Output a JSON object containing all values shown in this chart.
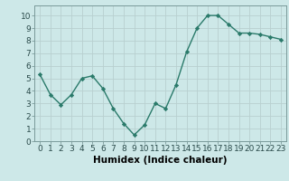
{
  "x": [
    0,
    1,
    2,
    3,
    4,
    5,
    6,
    7,
    8,
    9,
    10,
    11,
    12,
    13,
    14,
    15,
    16,
    17,
    18,
    19,
    20,
    21,
    22,
    23
  ],
  "y": [
    5.3,
    3.7,
    2.9,
    3.7,
    5.0,
    5.2,
    4.2,
    2.6,
    1.4,
    0.5,
    1.3,
    3.0,
    2.6,
    4.5,
    7.1,
    9.0,
    10.0,
    10.0,
    9.3,
    8.6,
    8.6,
    8.5,
    8.3,
    8.1
  ],
  "xlim": [
    -0.5,
    23.5
  ],
  "ylim": [
    0,
    10.8
  ],
  "xlabel": "Humidex (Indice chaleur)",
  "xticks": [
    0,
    1,
    2,
    3,
    4,
    5,
    6,
    7,
    8,
    9,
    10,
    11,
    12,
    13,
    14,
    15,
    16,
    17,
    18,
    19,
    20,
    21,
    22,
    23
  ],
  "yticks": [
    0,
    1,
    2,
    3,
    4,
    5,
    6,
    7,
    8,
    9,
    10
  ],
  "line_color": "#2a7a6a",
  "marker": "D",
  "marker_size": 2.2,
  "bg_color": "#cde8e8",
  "grid_color": "#b8d0d0",
  "xlabel_fontsize": 7.5,
  "tick_fontsize": 6.5,
  "line_width": 1.0,
  "spine_color": "#7a9a9a"
}
